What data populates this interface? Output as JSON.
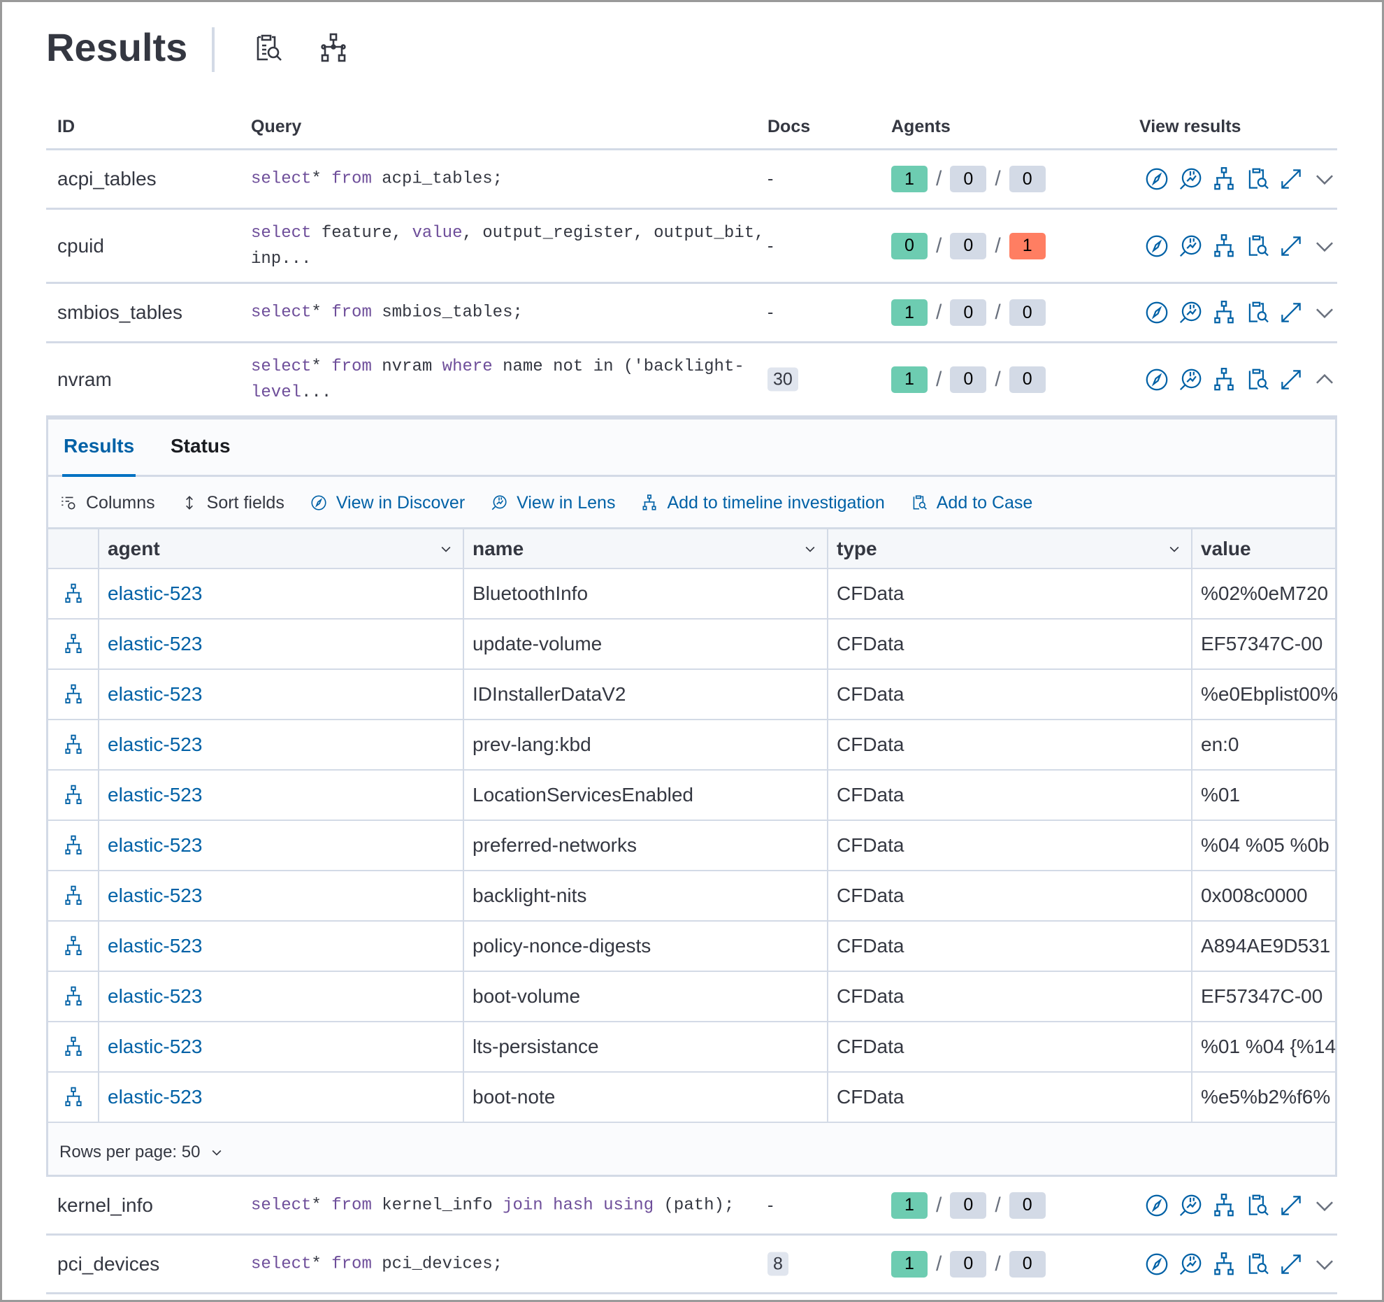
{
  "header": {
    "title": "Results",
    "icons": [
      "add-to-case-icon",
      "timeline-icon"
    ]
  },
  "table": {
    "columns": [
      "ID",
      "Query",
      "Docs",
      "Agents",
      "View results"
    ],
    "rows": [
      {
        "id": "acpi_tables",
        "query": [
          [
            "kw",
            "select"
          ],
          [
            "",
            "* "
          ],
          [
            "kw",
            "from"
          ],
          [
            "",
            " acpi_tables;"
          ]
        ],
        "docs": "-",
        "agents": [
          "1",
          "0",
          "0"
        ],
        "agent_colors": [
          "#6dccb1",
          "#d3dae6",
          "#d3dae6"
        ],
        "expanded": false
      },
      {
        "id": "cpuid",
        "query": [
          [
            "kw",
            "select"
          ],
          [
            "",
            " feature, "
          ],
          [
            "kw",
            "value"
          ],
          [
            "",
            ", output_register, output_bit, inp..."
          ]
        ],
        "docs": "-",
        "agents": [
          "0",
          "0",
          "1"
        ],
        "agent_colors": [
          "#6dccb1",
          "#d3dae6",
          "#ff7e62"
        ],
        "expanded": false
      },
      {
        "id": "smbios_tables",
        "query": [
          [
            "kw",
            "select"
          ],
          [
            "",
            "* "
          ],
          [
            "kw",
            "from"
          ],
          [
            "",
            " smbios_tables;"
          ]
        ],
        "docs": "-",
        "agents": [
          "1",
          "0",
          "0"
        ],
        "agent_colors": [
          "#6dccb1",
          "#d3dae6",
          "#d3dae6"
        ],
        "expanded": false
      },
      {
        "id": "nvram",
        "query": [
          [
            "kw",
            "select"
          ],
          [
            "",
            "* "
          ],
          [
            "kw",
            "from"
          ],
          [
            "",
            " nvram "
          ],
          [
            "kw",
            "where"
          ],
          [
            "",
            " name not in ('backlight-"
          ],
          [
            "kw",
            "level"
          ],
          [
            "",
            "..."
          ]
        ],
        "docs": "30",
        "agents": [
          "1",
          "0",
          "0"
        ],
        "agent_colors": [
          "#6dccb1",
          "#d3dae6",
          "#d3dae6"
        ],
        "expanded": true
      },
      {
        "id": "kernel_info",
        "query": [
          [
            "kw",
            "select"
          ],
          [
            "",
            "* "
          ],
          [
            "kw",
            "from"
          ],
          [
            "",
            " kernel_info "
          ],
          [
            "kw",
            "join hash using"
          ],
          [
            "",
            " (path);"
          ]
        ],
        "docs": "-",
        "agents": [
          "1",
          "0",
          "0"
        ],
        "agent_colors": [
          "#6dccb1",
          "#d3dae6",
          "#d3dae6"
        ],
        "expanded": false
      },
      {
        "id": "pci_devices",
        "query": [
          [
            "kw",
            "select"
          ],
          [
            "",
            "* "
          ],
          [
            "kw",
            "from"
          ],
          [
            "",
            " pci_devices;"
          ]
        ],
        "docs": "8",
        "agents": [
          "1",
          "0",
          "0"
        ],
        "agent_colors": [
          "#6dccb1",
          "#d3dae6",
          "#d3dae6"
        ],
        "expanded": false
      }
    ]
  },
  "panel": {
    "tabs": [
      {
        "label": "Results",
        "active": true
      },
      {
        "label": "Status",
        "active": false
      }
    ],
    "toolbar": {
      "columns": "Columns",
      "sort": "Sort fields",
      "discover": "View in Discover",
      "lens": "View in Lens",
      "timeline": "Add to timeline investigation",
      "case": "Add to Case"
    },
    "grid": {
      "columns": [
        "agent",
        "name",
        "type",
        "value"
      ],
      "rows": [
        [
          "elastic-523",
          "BluetoothInfo",
          "CFData",
          "%02%0eM720"
        ],
        [
          "elastic-523",
          "update-volume",
          "CFData",
          "EF57347C-00"
        ],
        [
          "elastic-523",
          "IDInstallerDataV2",
          "CFData",
          "%e0Ebplist00%"
        ],
        [
          "elastic-523",
          "prev-lang:kbd",
          "CFData",
          "en:0"
        ],
        [
          "elastic-523",
          "LocationServicesEnabled",
          "CFData",
          "%01"
        ],
        [
          "elastic-523",
          "preferred-networks",
          "CFData",
          "%04 %05 %0b"
        ],
        [
          "elastic-523",
          "backlight-nits",
          "CFData",
          "0x008c0000"
        ],
        [
          "elastic-523",
          "policy-nonce-digests",
          "CFData",
          "A894AE9D531"
        ],
        [
          "elastic-523",
          "boot-volume",
          "CFData",
          "EF57347C-00"
        ],
        [
          "elastic-523",
          "lts-persistance",
          "CFData",
          "%01 %04 {%14"
        ],
        [
          "elastic-523",
          "boot-note",
          "CFData",
          "%e5%b2%f6%"
        ]
      ]
    },
    "rows_per_page": "Rows per page: 50"
  },
  "colors": {
    "accent": "#0061a6",
    "success": "#6dccb1",
    "danger": "#ff7e62",
    "keyword": "#6e4e9a"
  }
}
